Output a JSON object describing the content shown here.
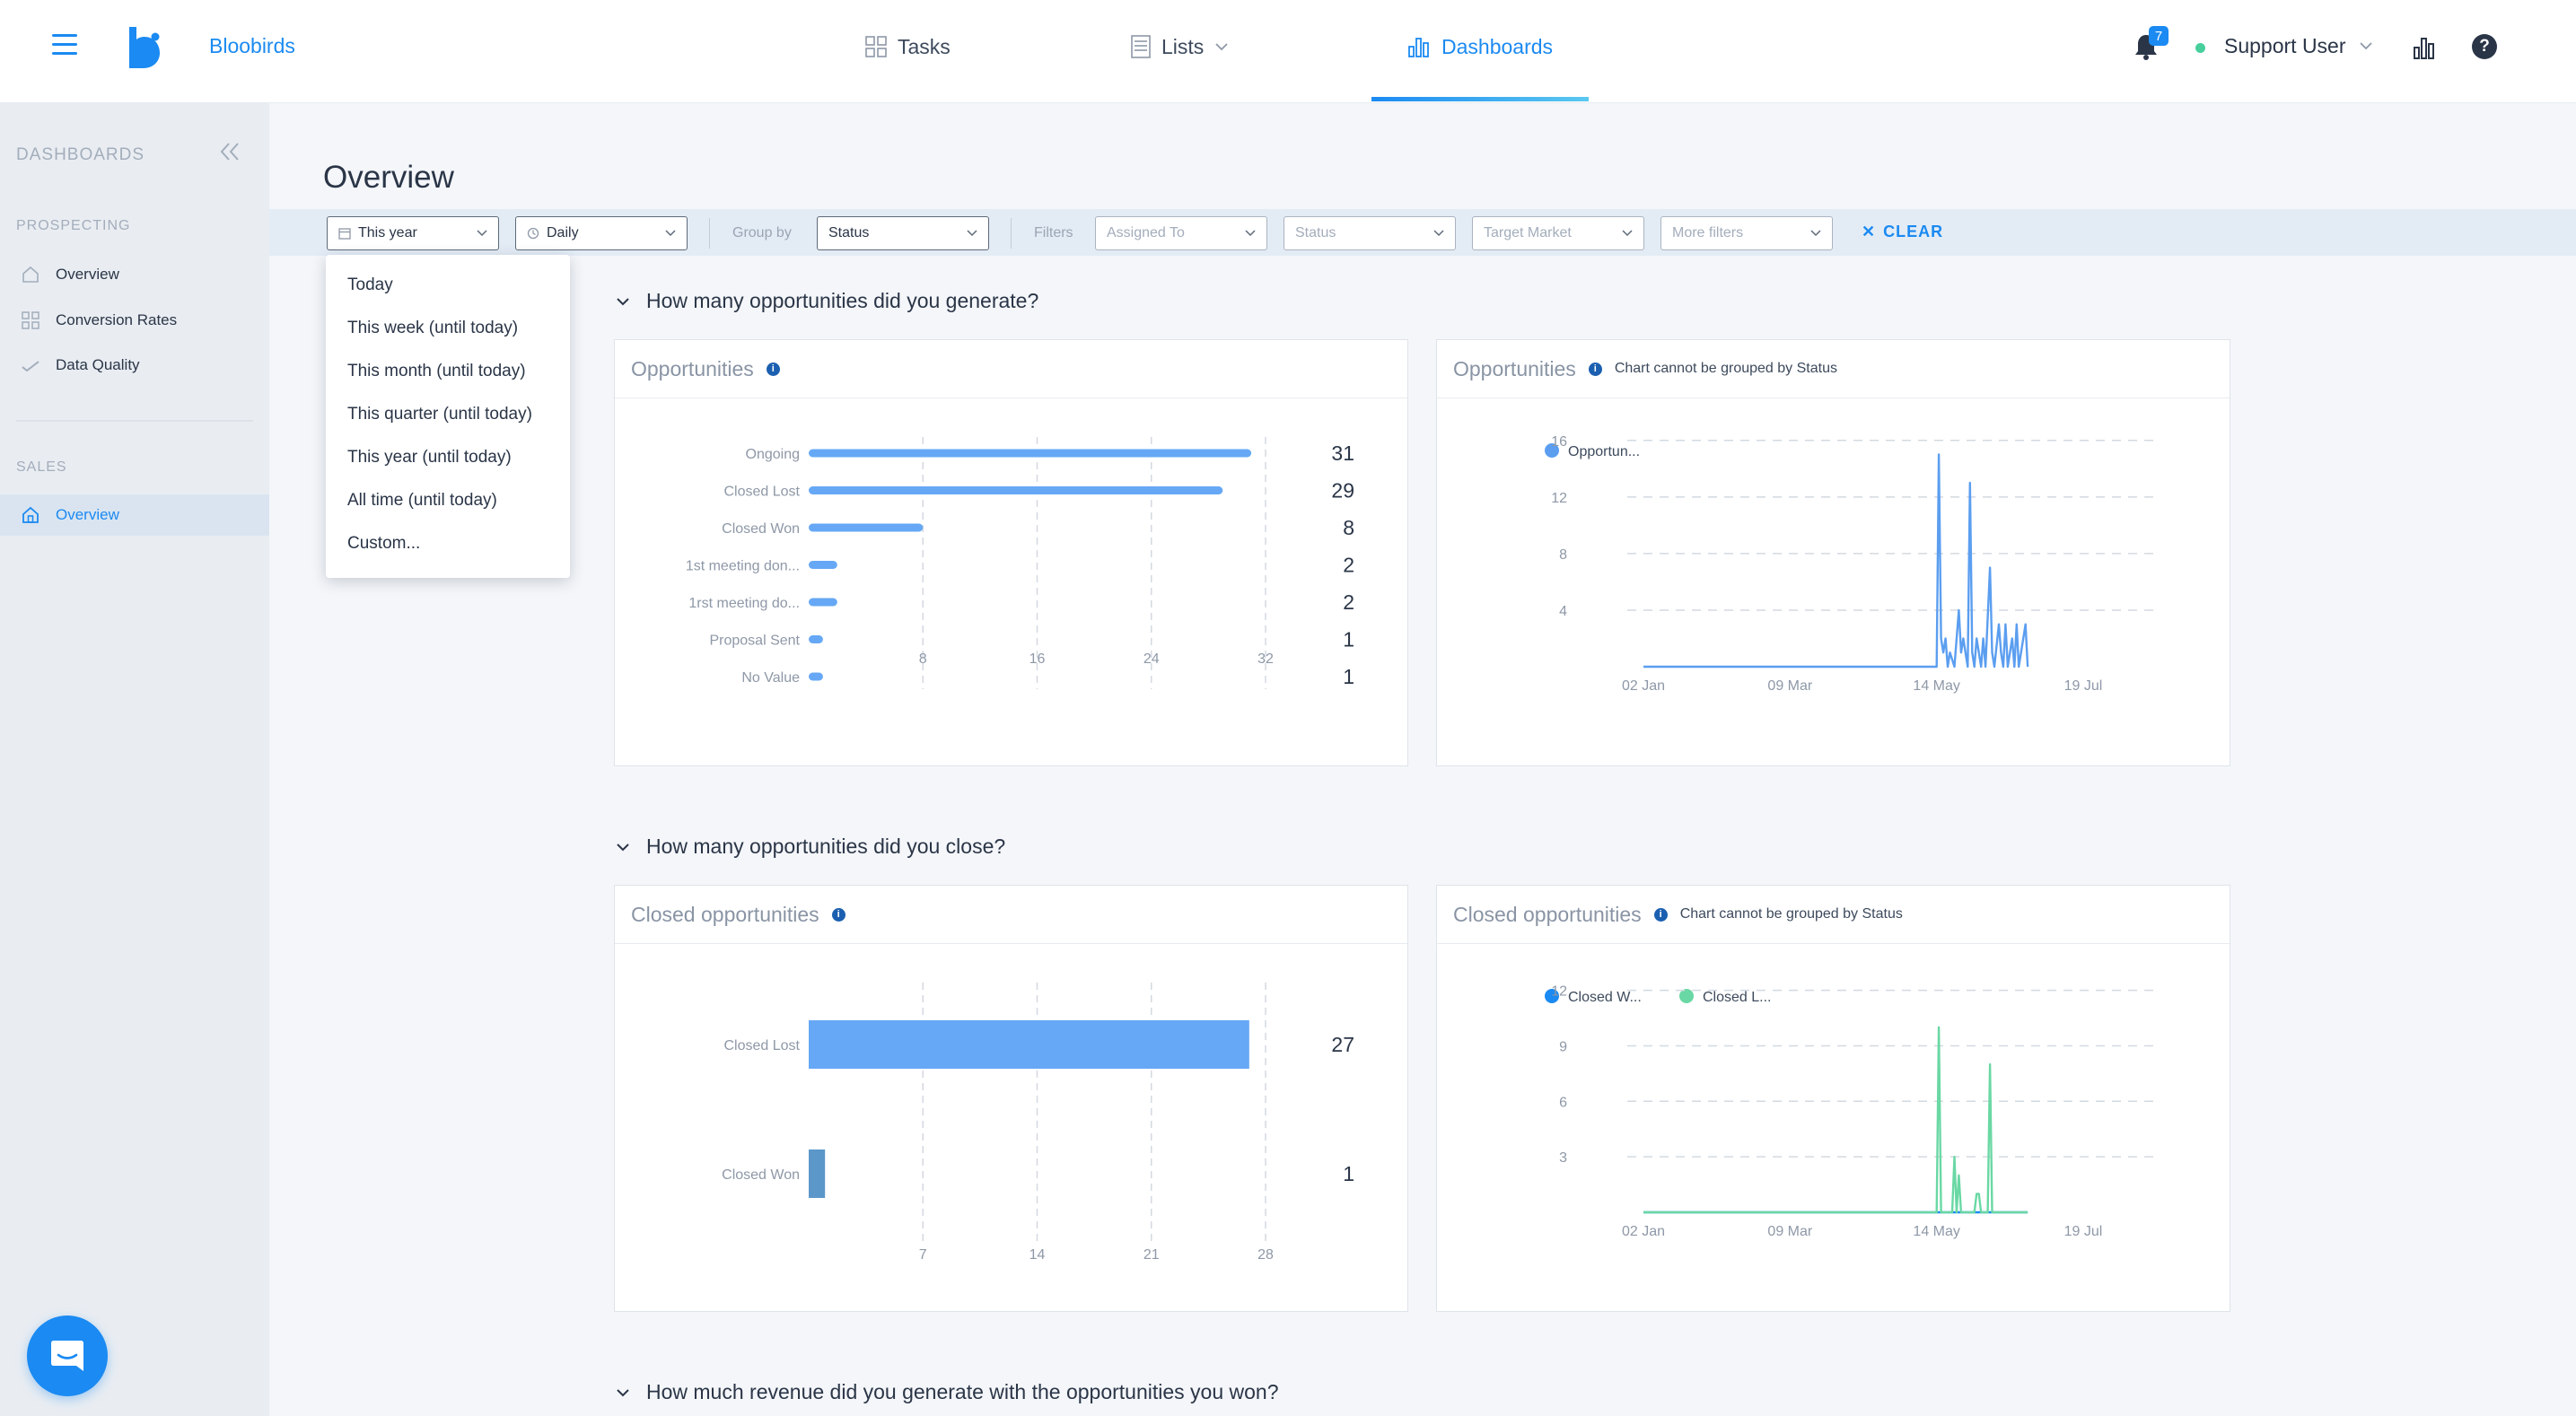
{
  "app": {
    "brand": "Bloobirds"
  },
  "nav": {
    "tasks": "Tasks",
    "lists": "Lists",
    "dashboards": "Dashboards",
    "active": "Dashboards"
  },
  "header": {
    "notifications_count": "7",
    "user_name": "Support User"
  },
  "sidebar": {
    "title": "DASHBOARDS",
    "prospecting_heading": "PROSPECTING",
    "prospecting_items": [
      {
        "label": "Overview",
        "icon": "home-icon"
      },
      {
        "label": "Conversion Rates",
        "icon": "grid-icon"
      },
      {
        "label": "Data Quality",
        "icon": "check-icon"
      }
    ],
    "sales_heading": "SALES",
    "sales_items": [
      {
        "label": "Overview",
        "icon": "home-icon",
        "active": true
      }
    ]
  },
  "page": {
    "title": "Overview"
  },
  "filters": {
    "date_range": "This year",
    "granularity": "Daily",
    "group_by_label": "Group by",
    "group_by_value": "Status",
    "filters_label": "Filters",
    "assigned_to": "Assigned To",
    "status": "Status",
    "target_market": "Target Market",
    "more_filters": "More filters",
    "clear": "CLEAR"
  },
  "date_dropdown": {
    "options": [
      "Today",
      "This week (until today)",
      "This month (until today)",
      "This quarter (until today)",
      "This year (until today)",
      "All time (until today)",
      "Custom..."
    ]
  },
  "sections": [
    {
      "title": "How many opportunities did you generate?"
    },
    {
      "title": "How many opportunities did you close?"
    },
    {
      "title": "How much revenue did you generate with the opportunities you won?"
    }
  ],
  "cards": {
    "opps_bar_title": "Opportunities",
    "opps_line_title": "Opportunities",
    "opps_line_note": "Chart cannot be grouped by Status",
    "closed_bar_title": "Closed opportunities",
    "closed_line_title": "Closed opportunities",
    "closed_line_note": "Chart cannot be grouped by Status"
  },
  "colors": {
    "accent": "#1b8af2",
    "bar": "#66a8f5",
    "closed_won_bar": "#5c97c9",
    "closed_lost_line": "#6ad8a4",
    "line": "#5b9ef0"
  },
  "chart_data": [
    {
      "type": "bar",
      "orientation": "horizontal",
      "categories": [
        "Ongoing",
        "Closed Lost",
        "Closed Won",
        "1st meeting don...",
        "1rst meeting do...",
        "Proposal Sent",
        "No Value"
      ],
      "values": [
        31,
        29,
        8,
        2,
        2,
        1,
        1
      ],
      "xticks": [
        8,
        16,
        24,
        32
      ],
      "xlim": [
        0,
        32
      ],
      "grid": true
    },
    {
      "type": "line",
      "legend": [
        "Opportun..."
      ],
      "xticks": [
        "02 Jan",
        "09 Mar",
        "14 May",
        "19 Jul"
      ],
      "yticks": [
        4,
        8,
        12,
        16
      ],
      "ylim": [
        0,
        17
      ],
      "series": [
        {
          "name": "Opportun...",
          "color": "#5b9ef0",
          "points": [
            [
              "02 Jan",
              0
            ],
            [
              "14 May",
              0
            ],
            [
              "15 May",
              15
            ],
            [
              "16 May",
              2
            ],
            [
              "17 May",
              1
            ],
            [
              "18 May",
              2
            ],
            [
              "19 May",
              0
            ],
            [
              "20 May",
              1
            ],
            [
              "22 May",
              0
            ],
            [
              "24 May",
              4
            ],
            [
              "25 May",
              1
            ],
            [
              "26 May",
              2
            ],
            [
              "27 May",
              1
            ],
            [
              "28 May",
              0
            ],
            [
              "29 May",
              13
            ],
            [
              "30 May",
              1
            ],
            [
              "31 May",
              0
            ],
            [
              "01 Jun",
              2
            ],
            [
              "02 Jun",
              1
            ],
            [
              "03 Jun",
              0
            ],
            [
              "04 Jun",
              2
            ],
            [
              "05 Jun",
              0
            ],
            [
              "07 Jun",
              7
            ],
            [
              "08 Jun",
              1
            ],
            [
              "09 Jun",
              0
            ],
            [
              "11 Jun",
              3
            ],
            [
              "12 Jun",
              1
            ],
            [
              "13 Jun",
              0
            ],
            [
              "14 Jun",
              3
            ],
            [
              "15 Jun",
              0
            ],
            [
              "17 Jun",
              2
            ],
            [
              "18 Jun",
              0
            ],
            [
              "19 Jun",
              3
            ],
            [
              "20 Jun",
              0
            ],
            [
              "22 Jun",
              2
            ],
            [
              "23 Jun",
              3
            ],
            [
              "24 Jun",
              0
            ]
          ]
        }
      ]
    },
    {
      "type": "bar",
      "orientation": "horizontal",
      "categories": [
        "Closed Lost",
        "Closed Won"
      ],
      "values": [
        27,
        1
      ],
      "xticks": [
        7,
        14,
        21,
        28
      ],
      "xlim": [
        0,
        28
      ],
      "grid": true
    },
    {
      "type": "line",
      "legend": [
        "Closed W...",
        "Closed L..."
      ],
      "xticks": [
        "02 Jan",
        "09 Mar",
        "14 May",
        "19 Jul"
      ],
      "yticks": [
        3,
        6,
        9,
        12
      ],
      "ylim": [
        0,
        13
      ],
      "series": [
        {
          "name": "Closed W...",
          "color": "#1b8af2",
          "points": [
            [
              "02 Jan",
              0
            ],
            [
              "24 Jun",
              0
            ]
          ]
        },
        {
          "name": "Closed L...",
          "color": "#6ad8a4",
          "points": [
            [
              "02 Jan",
              0
            ],
            [
              "14 May",
              0
            ],
            [
              "15 May",
              10
            ],
            [
              "16 May",
              0
            ],
            [
              "21 May",
              0
            ],
            [
              "22 May",
              3
            ],
            [
              "23 May",
              0
            ],
            [
              "24 May",
              2
            ],
            [
              "25 May",
              0
            ],
            [
              "31 May",
              0
            ],
            [
              "01 Jun",
              1
            ],
            [
              "02 Jun",
              1
            ],
            [
              "03 Jun",
              0
            ],
            [
              "06 Jun",
              0
            ],
            [
              "07 Jun",
              8
            ],
            [
              "08 Jun",
              0
            ],
            [
              "24 Jun",
              0
            ]
          ]
        }
      ]
    }
  ]
}
